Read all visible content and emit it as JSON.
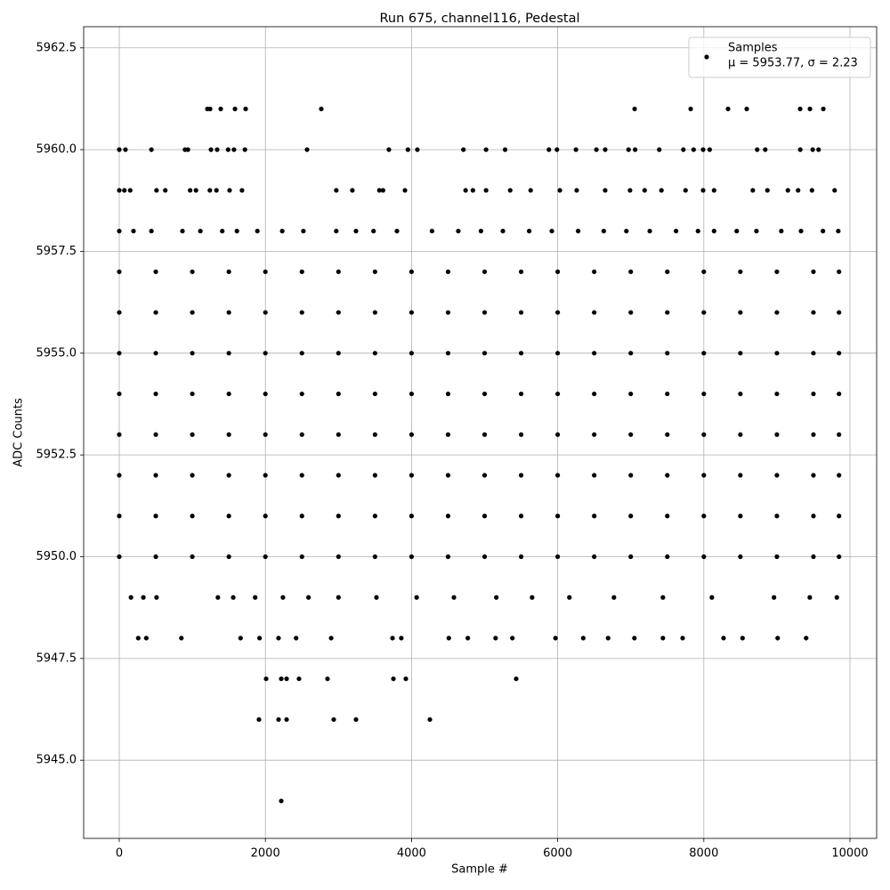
{
  "chart_data": {
    "type": "scatter",
    "title": "Run 675, channel116, Pedestal",
    "xlabel": "Sample #",
    "ylabel": "ADC Counts",
    "legend_stats": "μ = 5953.77, σ = 2.23",
    "legend": "upper right",
    "grid": true,
    "xlim": [
      -487,
      10365
    ],
    "ylim": [
      5943.08,
      5963.02
    ],
    "xticks": [
      0,
      2000,
      4000,
      6000,
      8000,
      10000
    ],
    "yticks": [
      {
        "value": 5945,
        "label": "5945.0"
      },
      5947.5,
      {
        "value": 5950,
        "label": "5950.0"
      },
      5952.5,
      {
        "value": 5955,
        "label": "5955.0"
      },
      5957.5,
      {
        "value": 5960,
        "label": "5960.0"
      },
      5962.5
    ],
    "series": [
      {
        "name": "Samples",
        "color": "#000000",
        "x": [
          1206,
          1243,
          1389,
          1584,
          1730,
          2765,
          7053,
          7820,
          8331,
          8587,
          9318,
          9452,
          9635,
          0,
          85,
          440,
          900,
          940,
          1255,
          1340,
          1490,
          1570,
          1720,
          2570,
          3690,
          3950,
          4080,
          4710,
          5020,
          5280,
          5880,
          5990,
          6250,
          6530,
          6650,
          6970,
          7060,
          7390,
          7720,
          7860,
          7990,
          8080,
          8730,
          8840,
          9320,
          9490,
          9570,
          0,
          70,
          150,
          510,
          630,
          970,
          1050,
          1240,
          1330,
          1510,
          1680,
          2970,
          3190,
          3560,
          3610,
          3910,
          4740,
          4840,
          5020,
          5350,
          5630,
          6030,
          6260,
          6650,
          6990,
          7190,
          7420,
          7750,
          7990,
          8140,
          8670,
          8870,
          9150,
          9290,
          9480,
          9790,
          0,
          195,
          440,
          865,
          1110,
          1410,
          1610,
          1890,
          2230,
          2520,
          2970,
          3240,
          3480,
          3800,
          4280,
          4640,
          4950,
          5250,
          5610,
          5920,
          6280,
          6630,
          6940,
          7260,
          7620,
          7920,
          8140,
          8450,
          8720,
          9060,
          9330,
          9630,
          9840,
          0,
          500,
          1000,
          1500,
          2000,
          2500,
          3000,
          3500,
          4000,
          4500,
          5000,
          5500,
          6000,
          6500,
          7000,
          7500,
          8000,
          8500,
          9000,
          9500,
          9850,
          0,
          500,
          1000,
          1500,
          2000,
          2500,
          3000,
          3500,
          4000,
          4500,
          5000,
          5500,
          6000,
          6500,
          7000,
          7500,
          8000,
          8500,
          9000,
          9500,
          9850,
          0,
          500,
          1000,
          1500,
          2000,
          2500,
          3000,
          3500,
          4000,
          4500,
          5000,
          5500,
          6000,
          6500,
          7000,
          7500,
          8000,
          8500,
          9000,
          9500,
          9850,
          0,
          500,
          1000,
          1500,
          2000,
          2500,
          3000,
          3500,
          4000,
          4500,
          5000,
          5500,
          6000,
          6500,
          7000,
          7500,
          8000,
          8500,
          9000,
          9500,
          9850,
          0,
          500,
          1000,
          1500,
          2000,
          2500,
          3000,
          3500,
          4000,
          4500,
          5000,
          5500,
          6000,
          6500,
          7000,
          7500,
          8000,
          8500,
          9000,
          9500,
          9850,
          0,
          500,
          1000,
          1500,
          2000,
          2500,
          3000,
          3500,
          4000,
          4500,
          5000,
          5500,
          6000,
          6500,
          7000,
          7500,
          8000,
          8500,
          9000,
          9500,
          9850,
          0,
          500,
          1000,
          1500,
          2000,
          2500,
          3000,
          3500,
          4000,
          4500,
          5000,
          5500,
          6000,
          6500,
          7000,
          7500,
          8000,
          8500,
          9000,
          9500,
          9850,
          0,
          500,
          1000,
          1500,
          2000,
          2500,
          3000,
          3500,
          4000,
          4500,
          5000,
          5500,
          6000,
          6500,
          7000,
          7500,
          8000,
          8500,
          9000,
          9500,
          9850,
          160,
          330,
          510,
          1350,
          1560,
          1860,
          2240,
          2590,
          3000,
          3520,
          4070,
          4580,
          5160,
          5650,
          6160,
          6770,
          7440,
          8110,
          8960,
          9450,
          9820,
          260,
          370,
          850,
          1660,
          1920,
          2180,
          2420,
          2900,
          3740,
          3860,
          4510,
          4770,
          5150,
          5380,
          5970,
          6350,
          6690,
          7050,
          7440,
          7710,
          8270,
          8530,
          9010,
          9400,
          2010,
          2217,
          2290,
          2460,
          2850,
          3752,
          3922,
          5432,
          1912,
          2180,
          2290,
          2935,
          3240,
          4251,
          2217
        ],
        "values": [
          5961,
          5961,
          5961,
          5961,
          5961,
          5961,
          5961,
          5961,
          5961,
          5961,
          5961,
          5961,
          5961,
          5960,
          5960,
          5960,
          5960,
          5960,
          5960,
          5960,
          5960,
          5960,
          5960,
          5960,
          5960,
          5960,
          5960,
          5960,
          5960,
          5960,
          5960,
          5960,
          5960,
          5960,
          5960,
          5960,
          5960,
          5960,
          5960,
          5960,
          5960,
          5960,
          5960,
          5960,
          5960,
          5960,
          5960,
          5959,
          5959,
          5959,
          5959,
          5959,
          5959,
          5959,
          5959,
          5959,
          5959,
          5959,
          5959,
          5959,
          5959,
          5959,
          5959,
          5959,
          5959,
          5959,
          5959,
          5959,
          5959,
          5959,
          5959,
          5959,
          5959,
          5959,
          5959,
          5959,
          5959,
          5959,
          5959,
          5959,
          5959,
          5959,
          5959,
          5958,
          5958,
          5958,
          5958,
          5958,
          5958,
          5958,
          5958,
          5958,
          5958,
          5958,
          5958,
          5958,
          5958,
          5958,
          5958,
          5958,
          5958,
          5958,
          5958,
          5958,
          5958,
          5958,
          5958,
          5958,
          5958,
          5958,
          5958,
          5958,
          5958,
          5958,
          5958,
          5958,
          5957,
          5957,
          5957,
          5957,
          5957,
          5957,
          5957,
          5957,
          5957,
          5957,
          5957,
          5957,
          5957,
          5957,
          5957,
          5957,
          5957,
          5957,
          5957,
          5957,
          5957,
          5956,
          5956,
          5956,
          5956,
          5956,
          5956,
          5956,
          5956,
          5956,
          5956,
          5956,
          5956,
          5956,
          5956,
          5956,
          5956,
          5956,
          5956,
          5956,
          5956,
          5956,
          5955,
          5955,
          5955,
          5955,
          5955,
          5955,
          5955,
          5955,
          5955,
          5955,
          5955,
          5955,
          5955,
          5955,
          5955,
          5955,
          5955,
          5955,
          5955,
          5955,
          5955,
          5954,
          5954,
          5954,
          5954,
          5954,
          5954,
          5954,
          5954,
          5954,
          5954,
          5954,
          5954,
          5954,
          5954,
          5954,
          5954,
          5954,
          5954,
          5954,
          5954,
          5954,
          5953,
          5953,
          5953,
          5953,
          5953,
          5953,
          5953,
          5953,
          5953,
          5953,
          5953,
          5953,
          5953,
          5953,
          5953,
          5953,
          5953,
          5953,
          5953,
          5953,
          5953,
          5952,
          5952,
          5952,
          5952,
          5952,
          5952,
          5952,
          5952,
          5952,
          5952,
          5952,
          5952,
          5952,
          5952,
          5952,
          5952,
          5952,
          5952,
          5952,
          5952,
          5952,
          5951,
          5951,
          5951,
          5951,
          5951,
          5951,
          5951,
          5951,
          5951,
          5951,
          5951,
          5951,
          5951,
          5951,
          5951,
          5951,
          5951,
          5951,
          5951,
          5951,
          5951,
          5950,
          5950,
          5950,
          5950,
          5950,
          5950,
          5950,
          5950,
          5950,
          5950,
          5950,
          5950,
          5950,
          5950,
          5950,
          5950,
          5950,
          5950,
          5950,
          5950,
          5950,
          5949,
          5949,
          5949,
          5949,
          5949,
          5949,
          5949,
          5949,
          5949,
          5949,
          5949,
          5949,
          5949,
          5949,
          5949,
          5949,
          5949,
          5949,
          5949,
          5949,
          5949,
          5948,
          5948,
          5948,
          5948,
          5948,
          5948,
          5948,
          5948,
          5948,
          5948,
          5948,
          5948,
          5948,
          5948,
          5948,
          5948,
          5948,
          5948,
          5948,
          5948,
          5948,
          5948,
          5948,
          5948,
          5947,
          5947,
          5947,
          5947,
          5947,
          5947,
          5947,
          5947,
          5946,
          5946,
          5946,
          5946,
          5946,
          5946,
          5944
        ]
      }
    ]
  }
}
